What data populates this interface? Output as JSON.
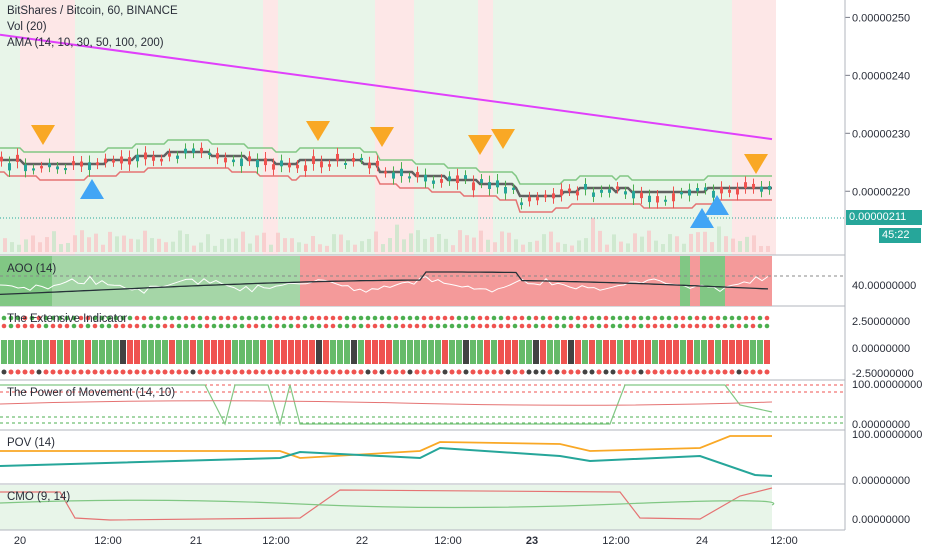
{
  "header": {
    "symbol": "BitShares / Bitcoin, 60, BINANCE",
    "vol": "Vol (20)",
    "ama": "AMA (14, 10, 30, 50, 100, 200)"
  },
  "current_price": "0.00000211",
  "countdown": "45:22",
  "panels": {
    "aoo": "AOO (14)",
    "ext": "The Extensive Indicator",
    "pom": "The Power of Movement (14, 10)",
    "pov": "POV (14)",
    "cmo": "CMO (9, 14)"
  },
  "colors": {
    "bull": "#4caf50",
    "bear": "#ef5350",
    "magenta": "#e040fb",
    "signal_down": "#f9a825",
    "signal_up": "#42a5f5",
    "bg_green": "#e8f5e9",
    "bg_red": "#fde7e7",
    "tag_price": "#26a69a"
  },
  "chart_data": {
    "type": "line",
    "main_axis": {
      "ticks": [
        "0.00000250",
        "0.00000240",
        "0.00000230",
        "0.00000220"
      ],
      "ylim": [
        2.09e-06,
        2.53e-06
      ]
    },
    "x_labels": [
      "20",
      "12:00",
      "21",
      "12:00",
      "22",
      "12:00",
      "23",
      "12:00",
      "24",
      "12:00"
    ],
    "magenta_line": {
      "start": 2.47e-06,
      "end": 2.29e-06
    },
    "panel_axes": {
      "aoo": [
        "40.00000000"
      ],
      "ext": [
        "2.50000000",
        "0.00000000",
        "-2.50000000"
      ],
      "pom": [
        "100.00000000",
        "0.00000000"
      ],
      "pov": [
        "100.00000000",
        "0.00000000"
      ],
      "cmo": [
        "0.00000000"
      ]
    }
  }
}
